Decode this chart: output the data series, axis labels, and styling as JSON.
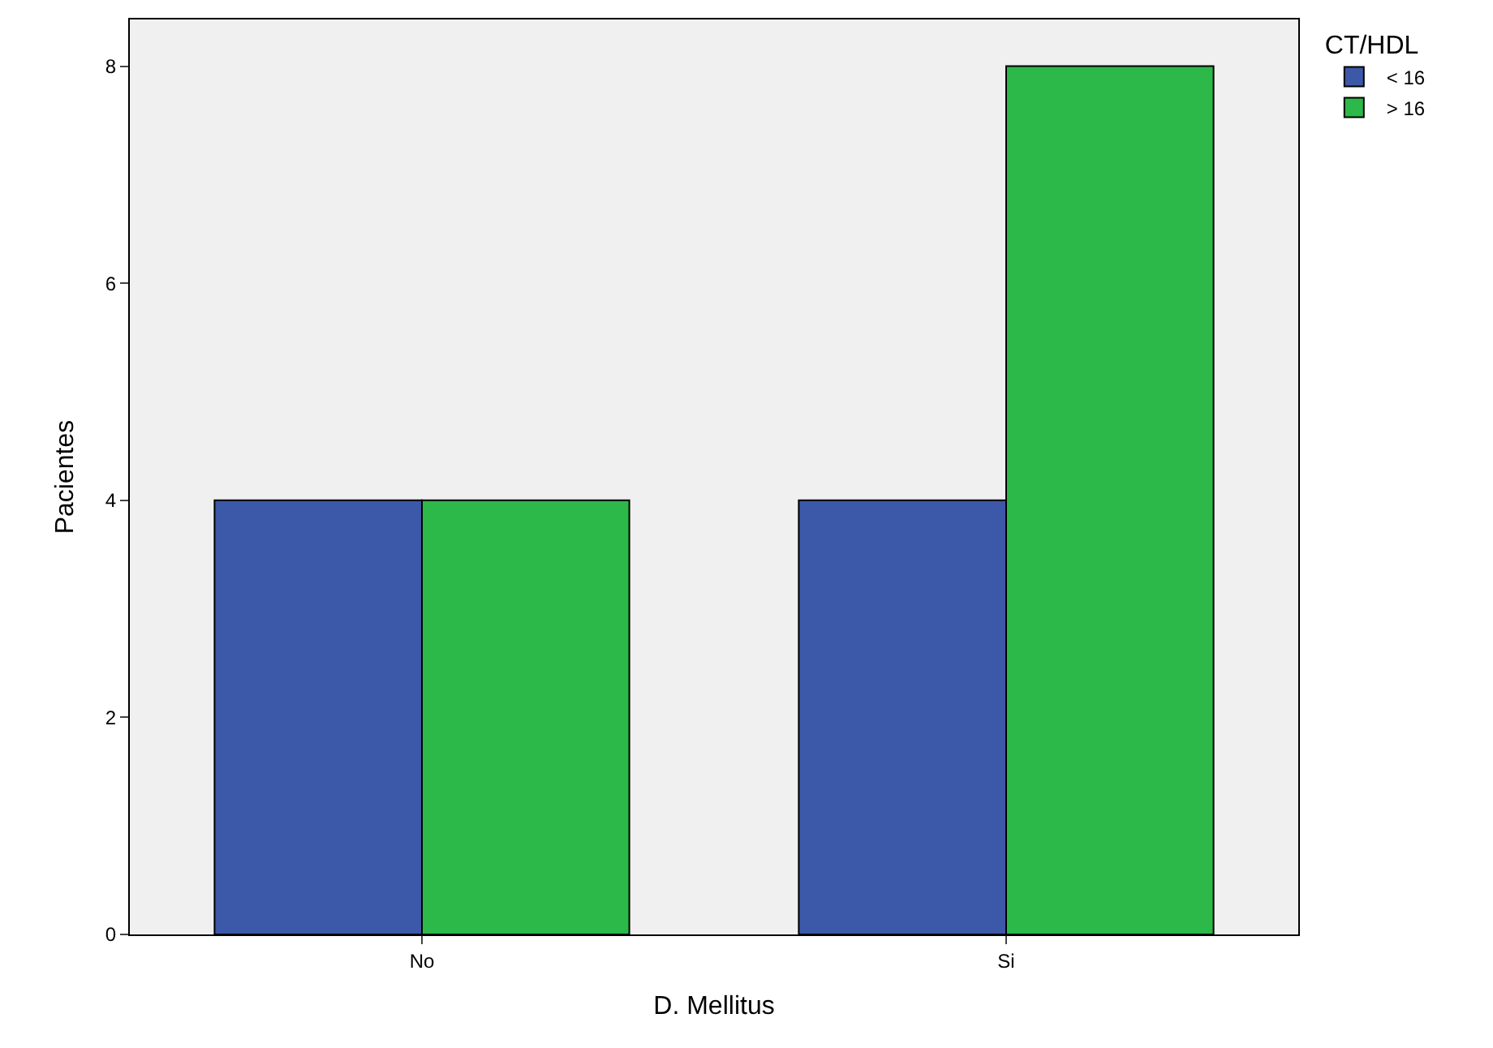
{
  "chart_data": {
    "type": "bar",
    "xlabel": "D. Mellitus",
    "ylabel": "Pacientes",
    "legend_title": "CT/HDL",
    "categories": [
      "No",
      "Si"
    ],
    "series": [
      {
        "name": "< 16",
        "color": "#3c58a8",
        "values": [
          4,
          4
        ]
      },
      {
        "name": "> 16",
        "color": "#2db84a",
        "values": [
          4,
          8
        ]
      }
    ],
    "ylim": [
      0,
      8.43
    ],
    "yticks": [
      0,
      2,
      4,
      6,
      8
    ],
    "grid": false,
    "legend": "top right"
  }
}
